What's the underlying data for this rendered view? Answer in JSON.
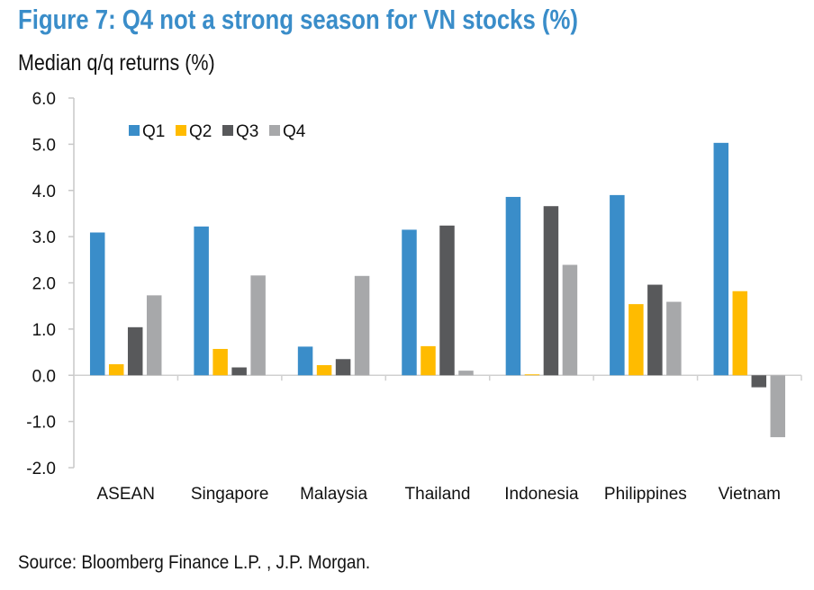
{
  "chart_data": {
    "type": "bar",
    "title": "Figure 7: Q4 not a strong season for VN stocks (%)",
    "subtitle": "Median q/q returns (%)",
    "source": "Source: Bloomberg Finance L.P. , J.P. Morgan.",
    "categories": [
      "ASEAN",
      "Singapore",
      "Malaysia",
      "Thailand",
      "Indonesia",
      "Philippines",
      "Vietnam"
    ],
    "series": [
      {
        "name": "Q1",
        "color": "#3a8dc9",
        "values": [
          3.09,
          3.22,
          0.62,
          3.15,
          3.86,
          3.9,
          5.03
        ]
      },
      {
        "name": "Q2",
        "color": "#ffbb00",
        "values": [
          0.24,
          0.57,
          0.22,
          0.63,
          0.02,
          1.54,
          1.82
        ]
      },
      {
        "name": "Q3",
        "color": "#58595b",
        "values": [
          1.04,
          0.17,
          0.35,
          3.24,
          3.66,
          1.96,
          -0.26
        ]
      },
      {
        "name": "Q4",
        "color": "#a7a8aa",
        "values": [
          1.73,
          2.16,
          2.15,
          0.1,
          2.39,
          1.59,
          -1.34
        ]
      }
    ],
    "ylim": [
      -2.0,
      6.0
    ],
    "yticks": [
      "-2.0",
      "-1.0",
      "0.0",
      "1.0",
      "2.0",
      "3.0",
      "4.0",
      "5.0",
      "6.0"
    ],
    "grid": false,
    "legend_position": "top-left"
  }
}
